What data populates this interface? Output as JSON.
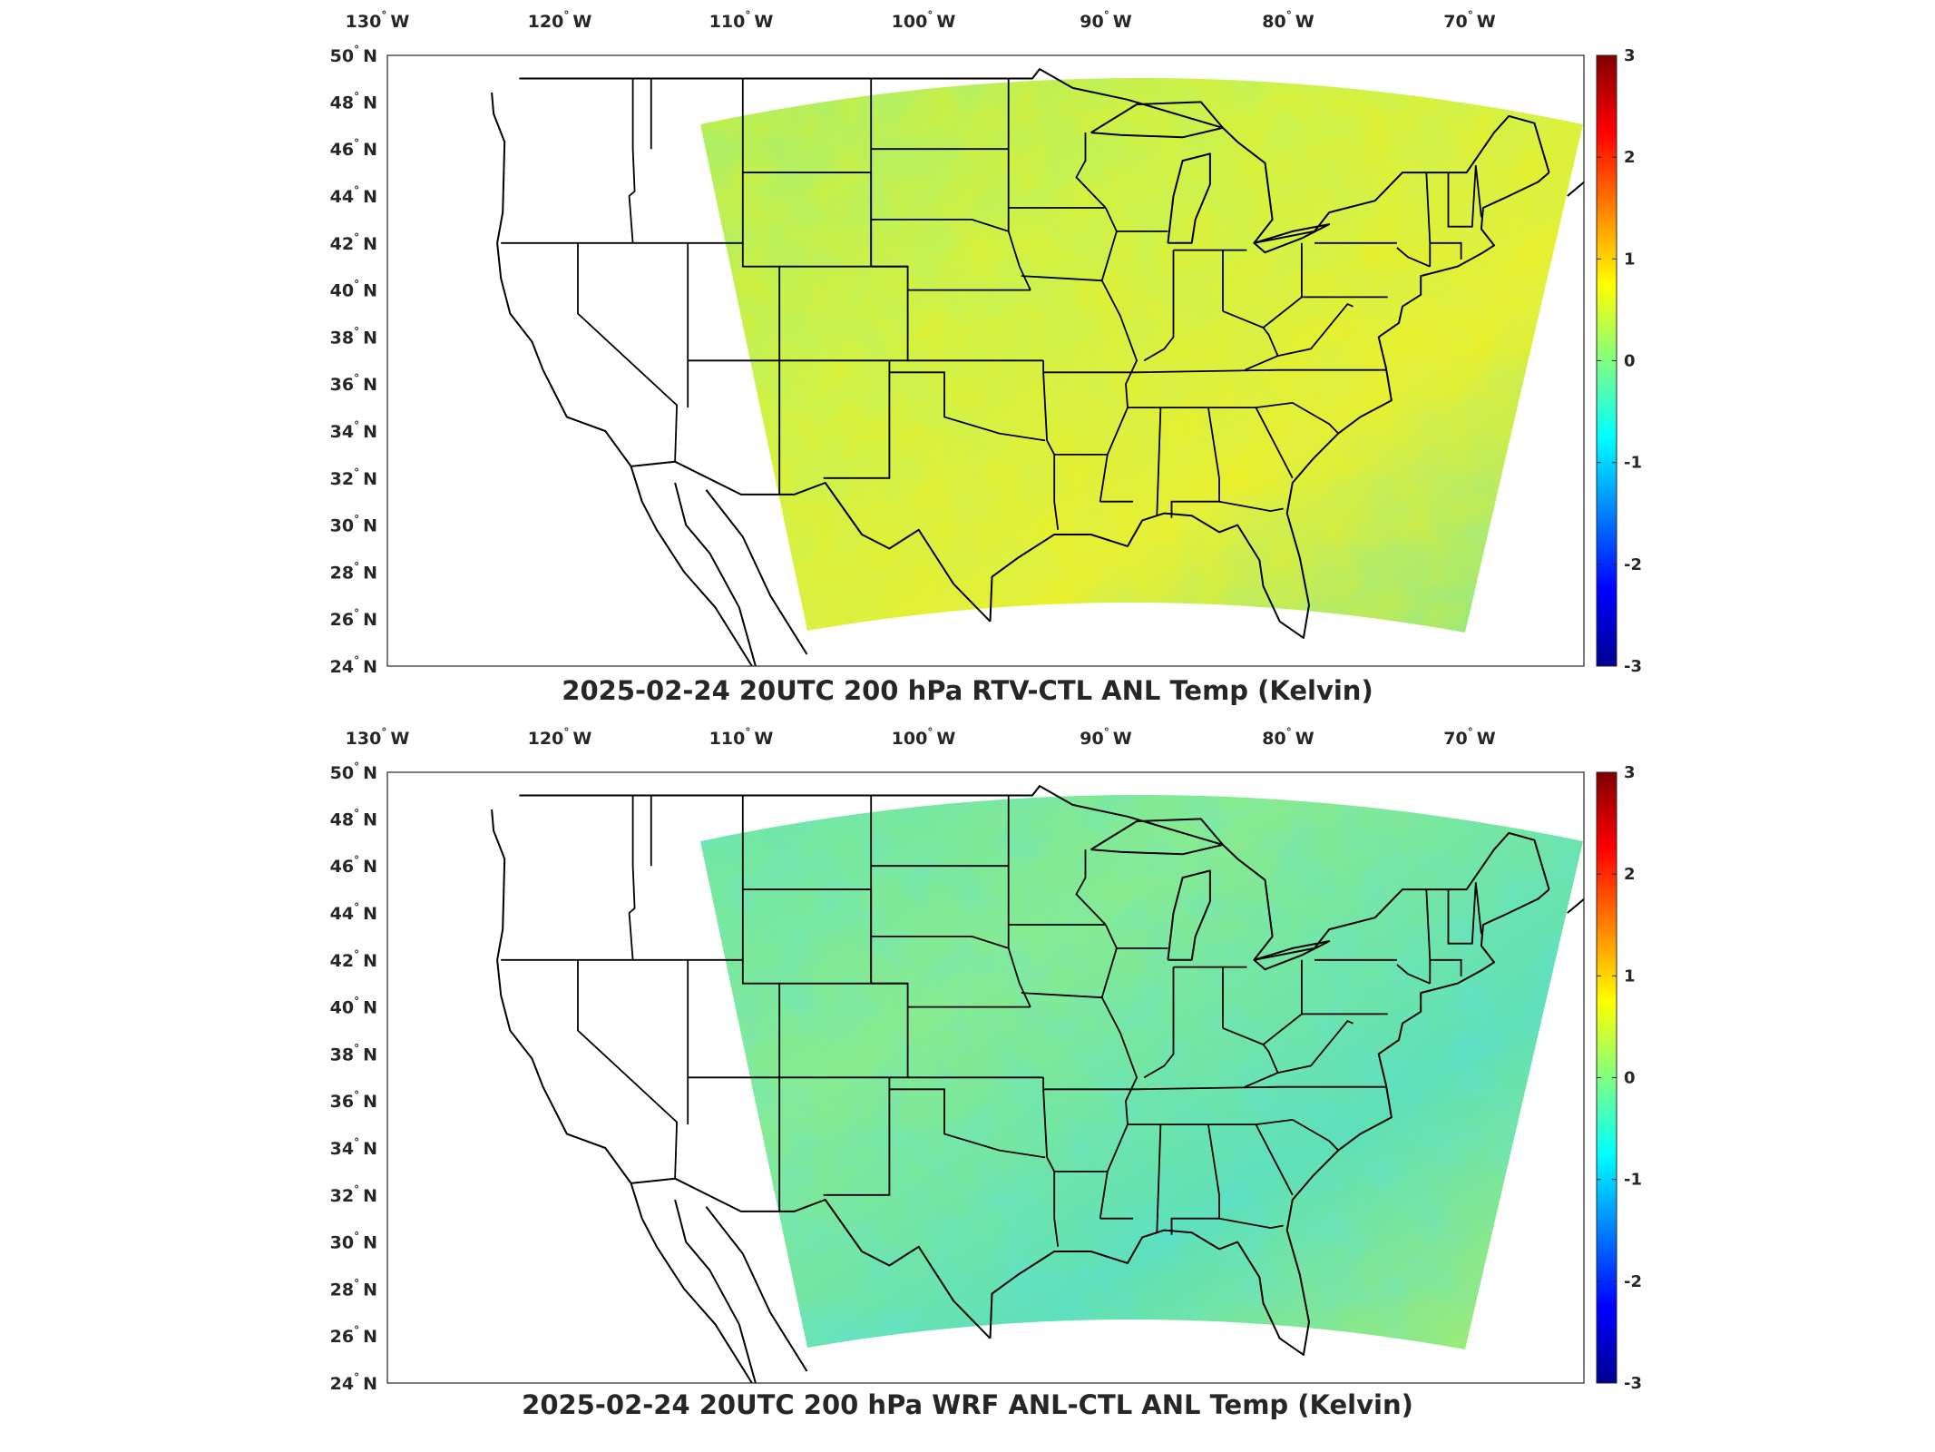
{
  "map": {
    "lon_labels": [
      "130",
      "120",
      "110",
      "100",
      "90",
      "80",
      "70"
    ],
    "lon_hemisphere": "W",
    "lat_labels": [
      "50",
      "48",
      "46",
      "44",
      "42",
      "40",
      "38",
      "36",
      "34",
      "32",
      "30",
      "28",
      "26",
      "24"
    ],
    "lat_hemisphere": "N",
    "degree_symbol": "°",
    "colorbar": {
      "ticks": [
        "3",
        "2",
        "1",
        "0",
        "-1",
        "-2",
        "-3"
      ],
      "range": [
        -3,
        3
      ],
      "colormap": [
        "#00008f",
        "#0000ff",
        "#0080ff",
        "#00ffff",
        "#80ff80",
        "#ffff00",
        "#ff8000",
        "#ff0000",
        "#800000"
      ]
    }
  },
  "panels": [
    {
      "title": "2025-02-24 20UTC 200 hPa RTV-CTL ANL Temp (Kelvin)",
      "field_tint": [
        "#a7ee6a",
        "#c9f250",
        "#e3f03c",
        "#7fe79a"
      ]
    },
    {
      "title": "2025-02-24 20UTC 200 hPa WRF ANL-CTL ANL Temp (Kelvin)",
      "field_tint": [
        "#6ee6a8",
        "#88eb8e",
        "#5fe0b8",
        "#a9ee6a"
      ]
    }
  ]
}
